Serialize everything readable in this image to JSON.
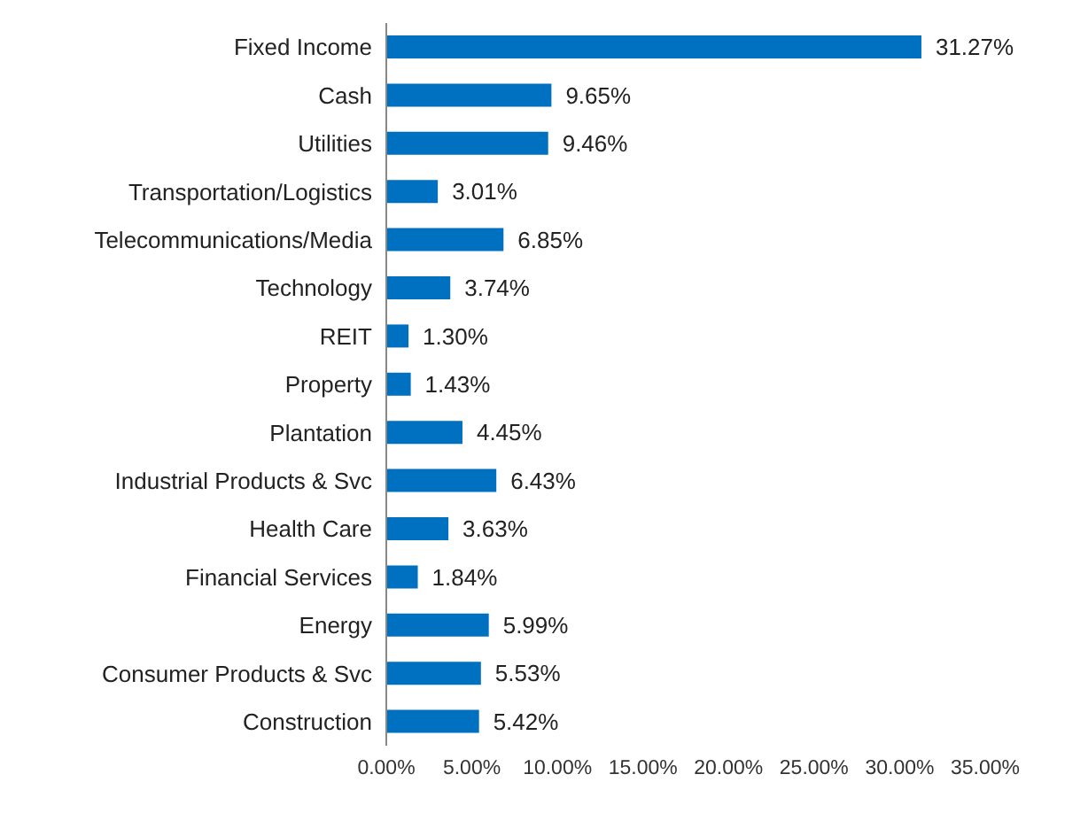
{
  "chart_data": {
    "type": "bar",
    "orientation": "horizontal",
    "categories": [
      "Fixed Income",
      "Cash",
      "Utilities",
      "Transportation/Logistics",
      "Telecommunications/Media",
      "Technology",
      "REIT",
      "Property",
      "Plantation",
      "Industrial Products & Svc",
      "Health Care",
      "Financial Services",
      "Energy",
      "Consumer Products & Svc",
      "Construction"
    ],
    "values": [
      31.27,
      9.65,
      9.46,
      3.01,
      6.85,
      3.74,
      1.3,
      1.43,
      4.45,
      6.43,
      3.63,
      1.84,
      5.99,
      5.53,
      5.42
    ],
    "value_labels": [
      "31.27%",
      "9.65%",
      "9.46%",
      "3.01%",
      "6.85%",
      "3.74%",
      "1.30%",
      "1.43%",
      "4.45%",
      "6.43%",
      "3.63%",
      "1.84%",
      "5.99%",
      "5.53%",
      "5.42%"
    ],
    "color": "#0070c0",
    "xlim": [
      0,
      35
    ],
    "xticks": [
      {
        "value": 0,
        "label": "0.00%"
      },
      {
        "value": 5,
        "label": "5.00%"
      },
      {
        "value": 10,
        "label": "10.00%"
      },
      {
        "value": 15,
        "label": "15.00%"
      },
      {
        "value": 20,
        "label": "20.00%"
      },
      {
        "value": 25,
        "label": "25.00%"
      },
      {
        "value": 30,
        "label": "30.00%"
      },
      {
        "value": 35,
        "label": "35.00%"
      }
    ],
    "grid": false
  }
}
